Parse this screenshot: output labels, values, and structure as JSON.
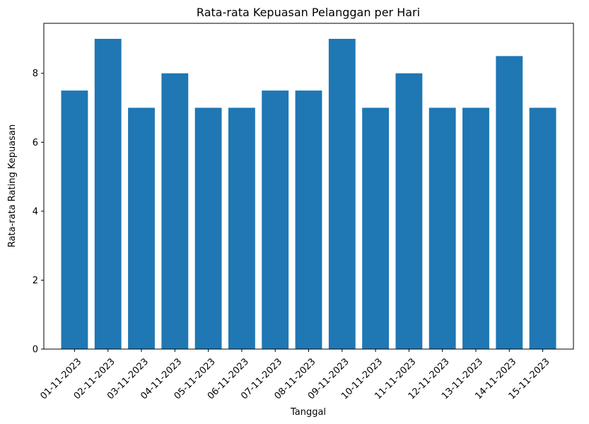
{
  "chart_data": {
    "type": "bar",
    "title": "Rata-rata Kepuasan Pelanggan per Hari",
    "xlabel": "Tanggal",
    "ylabel": "Rata-rata Rating Kepuasan",
    "categories": [
      "01-11-2023",
      "02-11-2023",
      "03-11-2023",
      "04-11-2023",
      "05-11-2023",
      "06-11-2023",
      "07-11-2023",
      "08-11-2023",
      "09-11-2023",
      "10-11-2023",
      "11-11-2023",
      "12-11-2023",
      "13-11-2023",
      "14-11-2023",
      "15-11-2023"
    ],
    "values": [
      7.5,
      9,
      7,
      8,
      7,
      7,
      7.5,
      7.5,
      9,
      7,
      8,
      7,
      7,
      8.5,
      7
    ],
    "ylim": [
      0,
      9.45
    ],
    "yticks": [
      0,
      2,
      4,
      6,
      8
    ],
    "bar_color": "#1f77b4",
    "grid": false,
    "xtick_rotation_deg": 45
  }
}
